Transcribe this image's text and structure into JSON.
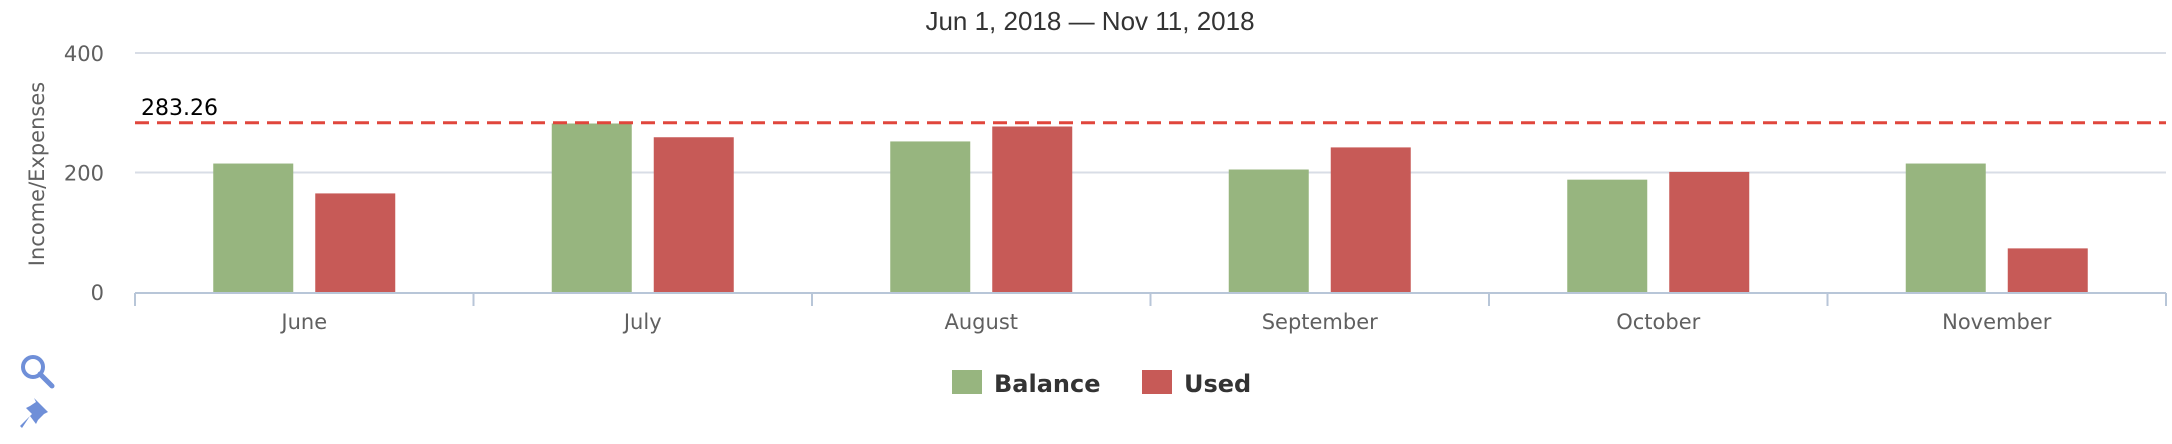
{
  "chart_data": {
    "type": "bar",
    "title": "Jun 1, 2018 — Nov 11, 2018",
    "xlabel": "",
    "ylabel": "Income/Expenses",
    "ylim": [
      0,
      400
    ],
    "yticks": [
      0,
      200,
      400
    ],
    "categories": [
      "June",
      "July",
      "August",
      "September",
      "October",
      "November"
    ],
    "series": [
      {
        "name": "Balance",
        "color": "#97b57f",
        "values": [
          215,
          282,
          252,
          205,
          188,
          215
        ]
      },
      {
        "name": "Used",
        "color": "#c75a57",
        "values": [
          165,
          259,
          277,
          242,
          201,
          73
        ]
      }
    ],
    "reference_line": {
      "value": 283.26,
      "label": "283.26",
      "color": "#e0463c",
      "style": "dashed"
    },
    "grid": true,
    "legend_position": "bottom-center"
  },
  "toolbar": {
    "zoom_icon": "magnifier-icon",
    "pin_icon": "pin-icon",
    "icon_color": "#6f8fd8"
  }
}
